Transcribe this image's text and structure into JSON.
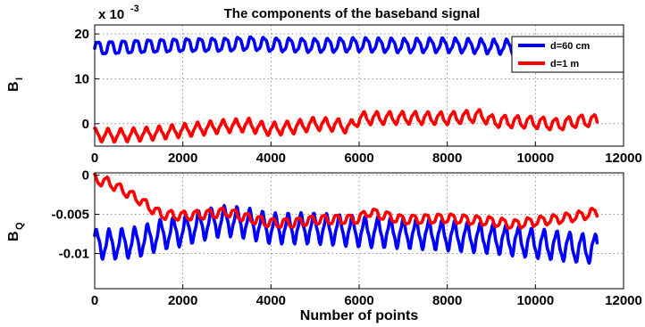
{
  "chart_data": [
    {
      "type": "line",
      "title": "The components of the baseband signal",
      "ylabel_main": "B",
      "ylabel_sub": "I",
      "y_multiplier_base": "x 10",
      "y_multiplier_exp": "-3",
      "xlim": [
        0,
        12000
      ],
      "ylim": [
        -5,
        22
      ],
      "grid": true,
      "legend_position": "top-right",
      "x_ticks": [
        "0",
        "2000",
        "4000",
        "6000",
        "8000",
        "10000",
        "12000"
      ],
      "y_ticks": [
        {
          "value": 20,
          "label": "20"
        },
        {
          "value": 10,
          "label": "10"
        },
        {
          "value": 0,
          "label": "0"
        }
      ],
      "series": [
        {
          "name": "d=60 cm",
          "color": "#0000ff",
          "x": [
            0,
            1000,
            2000,
            3000,
            3500,
            4000,
            5000,
            6000,
            7000,
            8000,
            9000,
            10000,
            10500,
            11000,
            11400
          ],
          "y": [
            16.8,
            17.2,
            17.5,
            17.6,
            17.9,
            17.6,
            17.4,
            17.6,
            17.4,
            17.5,
            17.2,
            17.0,
            16.9,
            16.8,
            16.5
          ],
          "ripple_amplitude": 1.5,
          "ripple_period": 290
        },
        {
          "name": "d=1 m",
          "color": "#ff0000",
          "x": [
            0,
            500,
            1000,
            1500,
            2000,
            3000,
            3500,
            3800,
            4000,
            4500,
            5000,
            5500,
            5800,
            6000,
            7000,
            8000,
            8800,
            9000,
            10000,
            10500,
            11000,
            11400
          ],
          "y": [
            -2.5,
            -2.6,
            -2.4,
            -2.0,
            -1.5,
            -0.5,
            -0.3,
            -1.0,
            -1.2,
            -0.8,
            0.0,
            -0.3,
            -0.8,
            1.2,
            1.3,
            1.2,
            1.8,
            0.6,
            0.3,
            -0.2,
            0.6,
            0.7
          ],
          "ripple_amplitude": 1.3,
          "ripple_period": 290
        }
      ]
    },
    {
      "type": "line",
      "xlabel": "Number of points",
      "ylabel_main": "B",
      "ylabel_sub": "Q",
      "xlim": [
        0,
        12000
      ],
      "ylim": [
        -0.0145,
        0.0003
      ],
      "grid": true,
      "x_ticks": [
        "0",
        "2000",
        "4000",
        "6000",
        "8000",
        "10000",
        "12000"
      ],
      "y_ticks": [
        {
          "value": 0,
          "label": "0"
        },
        {
          "value": -0.005,
          "label": "-0.005"
        },
        {
          "value": -0.01,
          "label": "-0.01"
        }
      ],
      "series": [
        {
          "color": "#0000ff",
          "x": [
            0,
            500,
            1000,
            1500,
            2000,
            2500,
            3000,
            3500,
            4000,
            5000,
            6000,
            7000,
            8000,
            9000,
            10000,
            10500,
            11000,
            11400
          ],
          "y": [
            -0.0088,
            -0.0088,
            -0.0085,
            -0.0076,
            -0.0071,
            -0.0063,
            -0.0058,
            -0.0062,
            -0.0068,
            -0.0068,
            -0.0072,
            -0.0074,
            -0.0077,
            -0.0081,
            -0.0087,
            -0.009,
            -0.0093,
            -0.0094
          ],
          "ripple_amplitude": 0.0017,
          "ripple_period": 290
        },
        {
          "color": "#ff0000",
          "x": [
            0,
            100,
            300,
            600,
            1000,
            1300,
            1500,
            2000,
            2500,
            3000,
            3500,
            4000,
            4500,
            5000,
            6000,
            6200,
            7000,
            8000,
            9000,
            9500,
            10000,
            10500,
            11000,
            11400
          ],
          "y": [
            -0.0005,
            -0.0007,
            -0.0009,
            -0.0018,
            -0.0031,
            -0.0043,
            -0.005,
            -0.0052,
            -0.005,
            -0.0047,
            -0.0055,
            -0.0061,
            -0.0061,
            -0.0057,
            -0.0056,
            -0.0047,
            -0.0057,
            -0.0055,
            -0.0059,
            -0.0063,
            -0.0059,
            -0.0056,
            -0.0052,
            -0.0047
          ],
          "ripple_amplitude": 0.0006,
          "ripple_period": 290
        }
      ]
    }
  ]
}
